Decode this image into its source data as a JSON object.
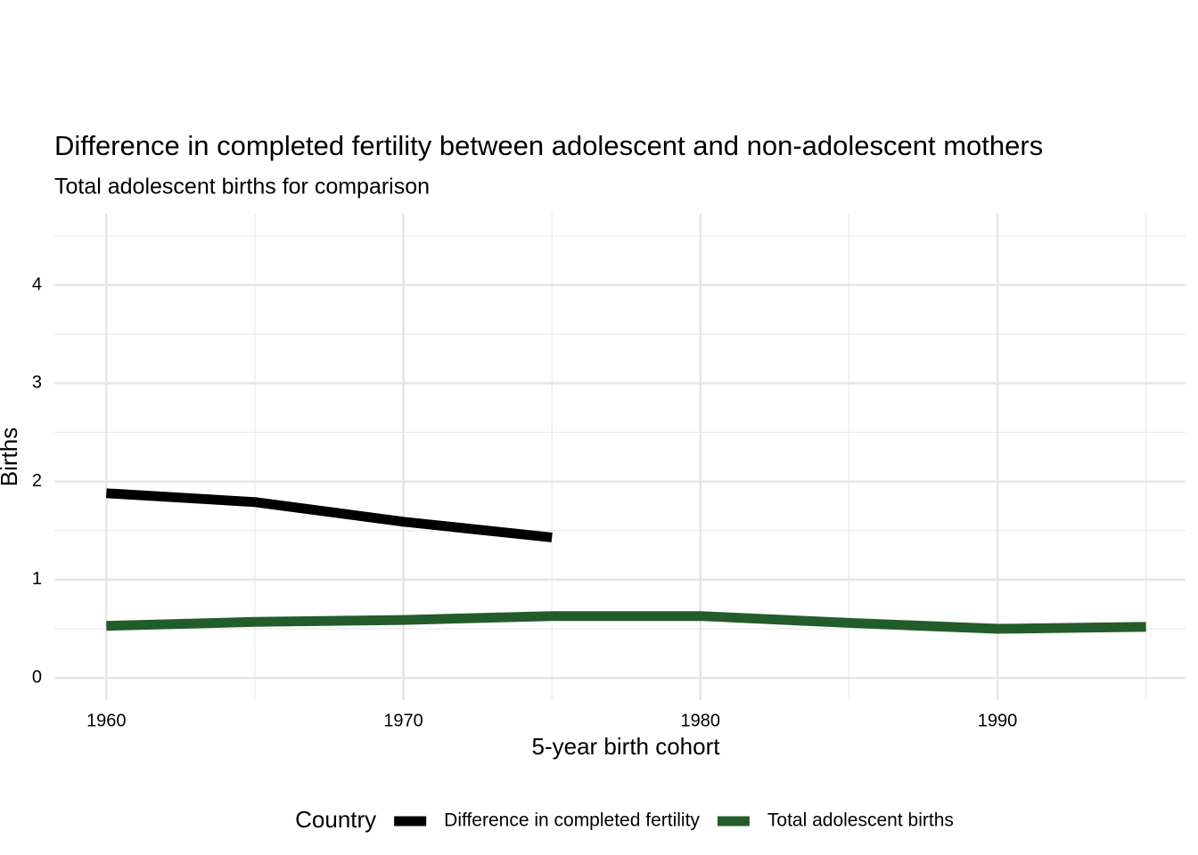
{
  "chart_data": {
    "type": "line",
    "title": "Difference in completed fertility between adolescent and non-adolescent mothers",
    "subtitle": "Total adolescent births for comparison",
    "x_label": "5-year birth cohort",
    "y_label": "Births",
    "legend_title": "Country",
    "legend_position": "bottom",
    "x": [
      1960,
      1965,
      1970,
      1975,
      1980,
      1985,
      1990,
      1995
    ],
    "series": [
      {
        "name": "Difference in completed fertility",
        "color": "#000000",
        "values": [
          1.88,
          1.79,
          1.59,
          1.43,
          null,
          null,
          null,
          null
        ]
      },
      {
        "name": "Total adolescent births",
        "color": "#235c2b",
        "values": [
          0.53,
          0.57,
          0.59,
          0.63,
          0.63,
          0.56,
          0.5,
          0.52
        ]
      }
    ],
    "xlim": [
      1958.25,
      1996.75
    ],
    "xticks": [
      1960,
      1970,
      1980,
      1990
    ],
    "x_minor_grid": [
      1965,
      1975,
      1985,
      1995
    ],
    "ylim": [
      -0.225,
      4.725
    ],
    "yticks": [
      0,
      1,
      2,
      3,
      4
    ],
    "y_minor_grid": [
      0.5,
      1.5,
      2.5,
      3.5,
      4.5
    ],
    "grid": true
  }
}
